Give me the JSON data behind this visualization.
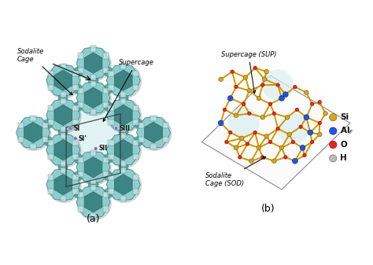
{
  "figure_width": 4.74,
  "figure_height": 3.37,
  "dpi": 100,
  "background_color": "#ffffff",
  "panel_a_label": "(a)",
  "panel_b_label": "(b)",
  "teal_light": "#8ECECE",
  "teal_mid": "#6AADAD",
  "teal_dark": "#3D8585",
  "teal_vlight": "#C5E8E8",
  "teal_shadow": "#4A7878",
  "purple": "#9966BB",
  "cage_edge": "#555555",
  "legend_items": [
    {
      "label": "Si",
      "color": "#DAA520",
      "edge": "#8B6914"
    },
    {
      "label": "Al_F",
      "color": "#2255DD",
      "edge": "#112299"
    },
    {
      "label": "O",
      "color": "#EE2222",
      "edge": "#990000"
    },
    {
      "label": "H",
      "color": "#BBBBBB",
      "edge": "#777777"
    }
  ],
  "sodalite_cage_label": "Sodalite\nCage",
  "supercage_label": "Supercage",
  "supercage_b_label": "Supercage (SUP)",
  "sodalite_b_label": "Sodalite\nCage (SOD)"
}
